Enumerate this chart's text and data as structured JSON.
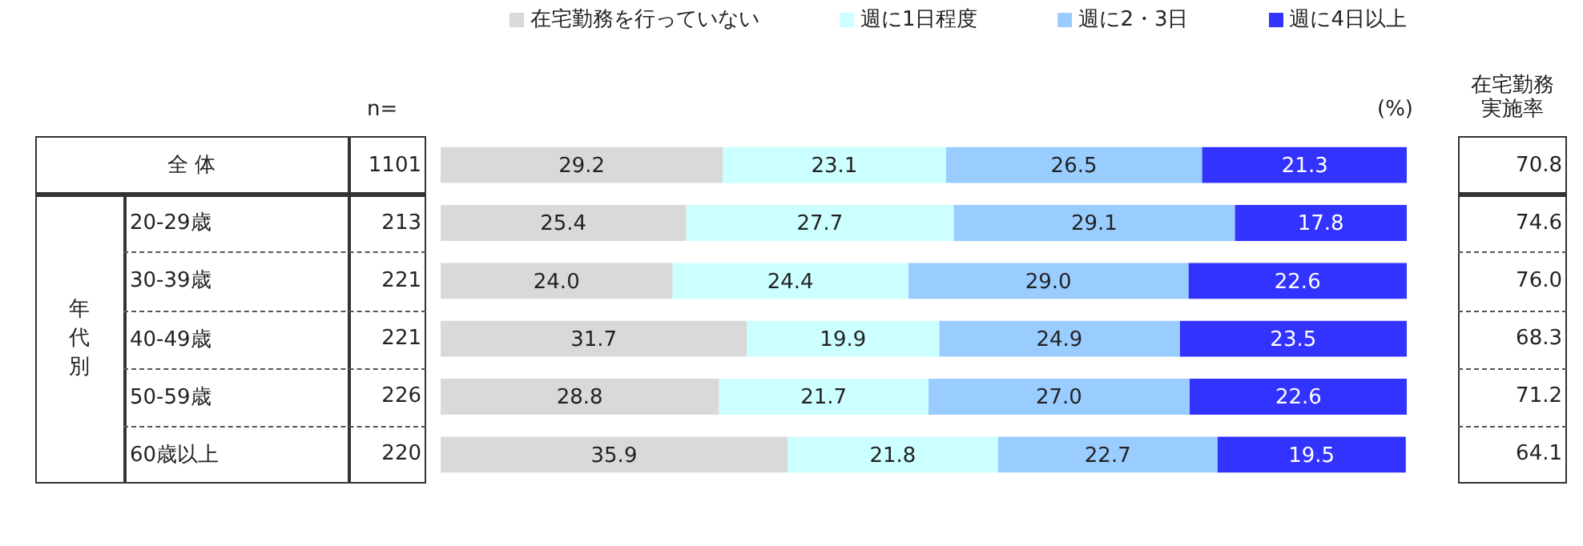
{
  "chart_data": {
    "type": "bar",
    "orientation": "horizontal",
    "stacked": true,
    "legend": "top",
    "tick_labels": "y",
    "grid": false,
    "categories": [
      "全 体",
      "20-29歳",
      "30-39歳",
      "40-49歳",
      "50-59歳",
      "60歳以上"
    ],
    "xlim": [
      0,
      100
    ],
    "series": [
      {
        "name": "在宅勤務を行っていない",
        "color": "#d9d9d9",
        "values": [
          29.2,
          25.4,
          24.0,
          31.7,
          28.8,
          35.9
        ],
        "value_labels": [
          "29.2",
          "25.4",
          "24.0",
          "31.7",
          "28.8",
          "35.9"
        ]
      },
      {
        "name": "週に1日程度",
        "color": "#ccffff",
        "values": [
          23.1,
          27.7,
          24.4,
          19.9,
          21.7,
          21.8
        ],
        "value_labels": [
          "23.1",
          "27.7",
          "24.4",
          "19.9",
          "21.7",
          "21.8"
        ]
      },
      {
        "name": "週に2・3日",
        "color": "#99ccff",
        "values": [
          26.5,
          29.1,
          29.0,
          24.9,
          27.0,
          22.7
        ],
        "value_labels": [
          "26.5",
          "29.1",
          "29.0",
          "24.9",
          "27.0",
          "22.7"
        ]
      },
      {
        "name": "週に4日以上",
        "color": "#3333ff",
        "values": [
          21.3,
          17.8,
          22.6,
          23.5,
          22.6,
          19.5
        ],
        "value_labels": [
          "21.3",
          "17.8",
          "22.6",
          "23.5",
          "22.6",
          "19.5"
        ]
      }
    ],
    "annotations": [
      "n=",
      "(%)",
      "在宅勤務実施率",
      "年代別",
      "1101",
      "213",
      "221",
      "221",
      "226",
      "220",
      "70.8",
      "74.6",
      "76.0",
      "68.3",
      "71.2",
      "64.1"
    ]
  }
}
